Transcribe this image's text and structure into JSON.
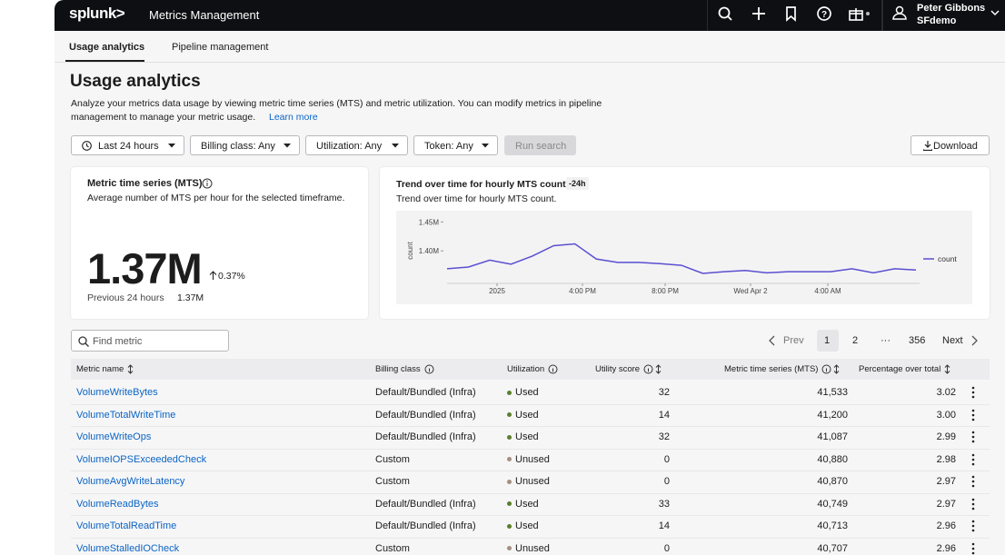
{
  "header": {
    "brand": "splunk>",
    "app": "Metrics Management",
    "user_name": "Peter Gibbons",
    "org": "SFdemo"
  },
  "tabs": [
    "Usage analytics",
    "Pipeline management"
  ],
  "page": {
    "title": "Usage analytics",
    "description_1": "Analyze your metrics data usage by viewing metric time series (MTS) and metric utilization. You can modify metrics in pipeline",
    "description_2": "management to manage your metric usage.",
    "learn_more": "Learn more"
  },
  "filters": [
    "Last 24 hours",
    "Billing class: Any",
    "Utilization: Any",
    "Token: Any"
  ],
  "run_search": "Run search",
  "download": "Download",
  "mts_card": {
    "title": "Metric time series (MTS)",
    "subtitle": "Average number of MTS per hour for the selected timeframe.",
    "value": "1.37M",
    "change": "0.37%",
    "previous_label": "Previous 24 hours",
    "previous_value": "1.37M"
  },
  "trend_card": {
    "title": "Trend over time for hourly MTS count",
    "badge": "-24h",
    "subtitle": "Trend over time for hourly MTS count.",
    "chart": {
      "type": "line",
      "y_label": "count",
      "ylim": [
        1350000,
        1460000
      ],
      "yticks": [
        {
          "value": 1450000,
          "label": "1.45M"
        },
        {
          "value": 1400000,
          "label": "1.40M"
        }
      ],
      "x_tick_labels": [
        "2025",
        "4:00 PM",
        "8:00 PM",
        "Wed Apr 2",
        "4:00 AM"
      ],
      "series": [
        {
          "name": "count",
          "color": "#5a4fcf",
          "values": [
            1369000,
            1372000,
            1384000,
            1377000,
            1391000,
            1409000,
            1412000,
            1386000,
            1380000,
            1380000,
            1378000,
            1375000,
            1361000,
            1364000,
            1366000,
            1362000,
            1364000,
            1364000,
            1364000,
            1369000,
            1362000,
            1369000,
            1367000
          ]
        }
      ]
    }
  },
  "search_placeholder": "Find metric",
  "pagination": [
    "Prev",
    "1",
    "2",
    "···",
    "356",
    "Next"
  ],
  "table": {
    "columns": [
      "Metric name",
      "Billing class",
      "Utilization",
      "Utility score",
      "Metric time series (MTS)",
      "Percentage over total"
    ],
    "rows": [
      [
        "VolumeWriteBytes",
        "Default/Bundled (Infra)",
        "Used",
        "32",
        "41,533",
        "3.02"
      ],
      [
        "VolumeTotalWriteTime",
        "Default/Bundled (Infra)",
        "Used",
        "14",
        "41,200",
        "3.00"
      ],
      [
        "VolumeWriteOps",
        "Default/Bundled (Infra)",
        "Used",
        "32",
        "41,087",
        "2.99"
      ],
      [
        "VolumeIOPSExceededCheck",
        "Custom",
        "Unused",
        "0",
        "40,880",
        "2.98"
      ],
      [
        "VolumeAvgWriteLatency",
        "Custom",
        "Unused",
        "0",
        "40,870",
        "2.97"
      ],
      [
        "VolumeReadBytes",
        "Default/Bundled (Infra)",
        "Used",
        "33",
        "40,749",
        "2.97"
      ],
      [
        "VolumeTotalReadTime",
        "Default/Bundled (Infra)",
        "Used",
        "14",
        "40,713",
        "2.96"
      ],
      [
        "VolumeStalledIOCheck",
        "Custom",
        "Unused",
        "0",
        "40,707",
        "2.96"
      ]
    ],
    "status_colors": [
      "#5b7f2b",
      "#5b7f2b",
      "#5b7f2b",
      "#a58f80",
      "#a58f80",
      "#5b7f2b",
      "#5b7f2b",
      "#a58f80"
    ]
  }
}
